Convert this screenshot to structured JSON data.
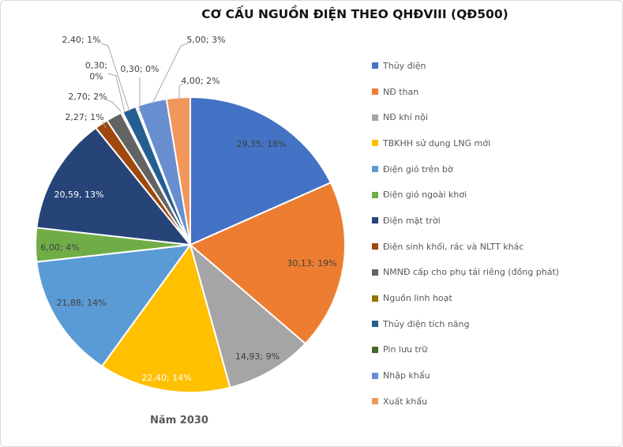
{
  "chart_data": {
    "type": "pie",
    "title": "CƠ CẤU NGUỒN ĐIỆN THEO QHĐVIII (QĐ500)",
    "category_label": "Năm 2030",
    "legend_position": "right",
    "label_format": "value; percent",
    "slices": [
      {
        "name": "Thủy điện",
        "value": 29.35,
        "percent": "18%",
        "label": "29,35; 18%",
        "color": "#4472C4",
        "label_color": "#404040",
        "label_style": "inside"
      },
      {
        "name": "NĐ than",
        "value": 30.13,
        "percent": "19%",
        "label": "30,13; 19%",
        "color": "#ED7D31",
        "label_color": "#404040",
        "label_style": "inside"
      },
      {
        "name": "NĐ khí nội",
        "value": 14.93,
        "percent": "9%",
        "label": "14,93; 9%",
        "color": "#A5A5A5",
        "label_color": "#404040",
        "label_style": "inside"
      },
      {
        "name": "TBKHH sử dụng LNG mới",
        "value": 22.4,
        "percent": "14%",
        "label": "22,40; 14%",
        "color": "#FFC000",
        "label_color": "#FFFFFF",
        "label_style": "inside"
      },
      {
        "name": "Điện gió trên bờ",
        "value": 21.88,
        "percent": "14%",
        "label": "21,88; 14%",
        "color": "#5B9BD5",
        "label_color": "#404040",
        "label_style": "inside"
      },
      {
        "name": "Điện gió ngoài khơi",
        "value": 6.0,
        "percent": "4%",
        "label": "6,00; 4%",
        "color": "#70AD47",
        "label_color": "#404040",
        "label_style": "inside"
      },
      {
        "name": "Điện mặt trời",
        "value": 20.59,
        "percent": "13%",
        "label": "20,59, 13%",
        "color": "#264478",
        "label_color": "#FFFFFF",
        "label_style": "inside"
      },
      {
        "name": "Điện sinh khối, rác và NLTT khác",
        "value": 2.27,
        "percent": "1%",
        "label": "2,27; 1%",
        "color": "#9E480E",
        "label_color": "#404040",
        "label_style": "callout"
      },
      {
        "name": "NMNĐ cấp cho phụ tải riêng (đồng phát)",
        "value": 2.7,
        "percent": "2%",
        "label": "2,70; 2%",
        "color": "#636363",
        "label_color": "#404040",
        "label_style": "callout"
      },
      {
        "name": "Nguồn linh hoạt",
        "value": 0.3,
        "percent": "0%",
        "label": "0,30; 0%",
        "color": "#997300",
        "label_color": "#404040",
        "label_style": "callout"
      },
      {
        "name": "Thủy điện tích năng",
        "value": 2.4,
        "percent": "1%",
        "label": "2,40; 1%",
        "color": "#255E91",
        "label_color": "#404040",
        "label_style": "callout"
      },
      {
        "name": "Pin lưu trữ",
        "value": 0.3,
        "percent": "0%",
        "label": "0,30; 0%",
        "color": "#43682B",
        "label_color": "#404040",
        "label_style": "callout"
      },
      {
        "name": "Nhập khẩu",
        "value": 5.0,
        "percent": "3%",
        "label": "5,00; 3%",
        "color": "#698ED0",
        "label_color": "#404040",
        "label_style": "callout"
      },
      {
        "name": "Xuất khẩu",
        "value": 4.0,
        "percent": "2%",
        "label": "4,00; 2%",
        "color": "#F1975A",
        "label_color": "#404040",
        "label_style": "callout"
      }
    ]
  }
}
